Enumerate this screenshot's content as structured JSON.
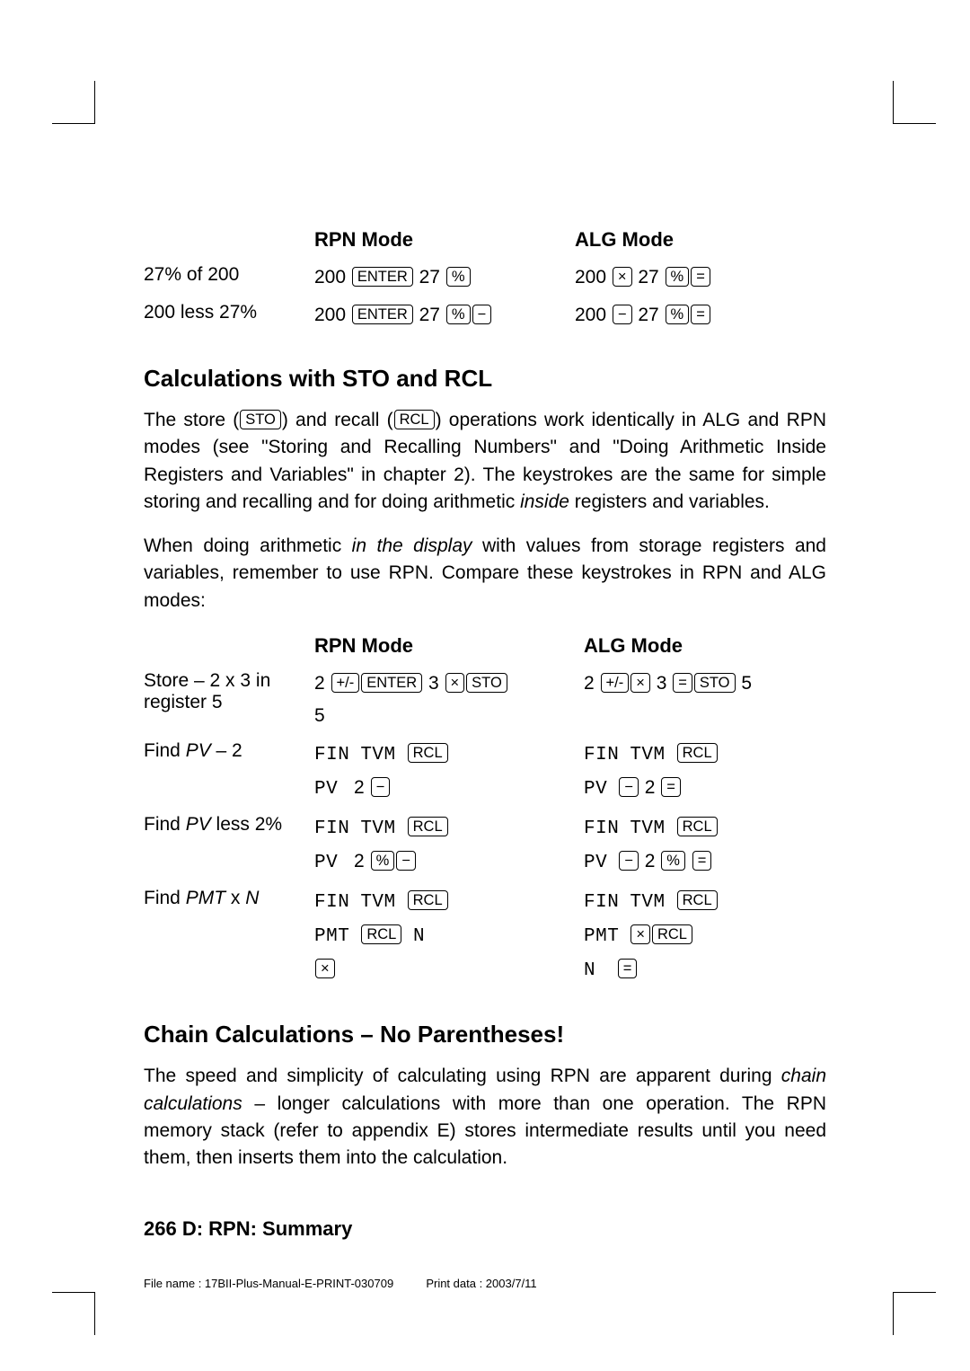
{
  "table1": {
    "head_rpn": "RPN Mode",
    "head_alg": "ALG Mode",
    "rows": [
      {
        "label": "27% of 200",
        "rpn": [
          "200 ",
          "ENTER",
          " 27 ",
          "%"
        ],
        "alg": [
          "200 ",
          "×",
          " 27 ",
          "%",
          "="
        ]
      },
      {
        "label": "200 less 27%",
        "rpn": [
          "200 ",
          "ENTER",
          " 27 ",
          "%",
          "−"
        ],
        "alg": [
          "200 ",
          "−",
          " 27 ",
          "%",
          "="
        ]
      }
    ]
  },
  "h_sto": "Calculations with STO and RCL",
  "p1a": "The store (",
  "p1b": ") and recall (",
  "p1c": ") operations work identically in ALG and RPN modes (see \"Storing and Recalling Numbers\" and \"Doing Arithmetic Inside Registers and Variables\" in chapter 2). The keystrokes are the same for simple storing and recalling and for doing arithmetic ",
  "p1d": " registers and variables.",
  "p1_inside": "inside",
  "p2a": "When doing arithmetic ",
  "p2b": " with values from storage registers and variables, remember to use RPN. Compare these keystrokes in RPN and ALG modes:",
  "p2_disp": "in the display",
  "table2": {
    "head_rpn": "RPN Mode",
    "head_alg": "ALG Mode",
    "rows": [
      {
        "label_a": "Store – 2 x 3 in",
        "label_b": "register 5",
        "rpn_l1": [
          "2 ",
          "+/-",
          "ENTER",
          " 3 ",
          "×",
          "STO"
        ],
        "rpn_l2": [
          "5"
        ],
        "alg_l1": [
          "2 ",
          "+/-",
          "×",
          " 3 ",
          "=",
          "STO",
          " 5"
        ]
      },
      {
        "label_a": "Find ",
        "label_i": "PV",
        "label_c": " – 2",
        "rpn_l1_disp": [
          "FIN",
          "TVM"
        ],
        "rpn_l1_keys": [
          "RCL"
        ],
        "rpn_l2_disp": [
          "PV"
        ],
        "rpn_l2_txt": " 2 ",
        "rpn_l2_keys": [
          "−"
        ],
        "alg_l1_disp": [
          "FIN",
          "TVM"
        ],
        "alg_l1_keys": [
          "RCL"
        ],
        "alg_l2_disp": [
          "PV"
        ],
        "alg_l2_keys": [
          "−",
          " 2 ",
          "="
        ]
      },
      {
        "label_a": "Find ",
        "label_i": "PV",
        "label_c": " less 2%",
        "rpn_l1_disp": [
          "FIN",
          "TVM"
        ],
        "rpn_l1_keys": [
          "RCL"
        ],
        "rpn_l2_disp": [
          "PV"
        ],
        "rpn_l2_txt": " 2 ",
        "rpn_l2_keys": [
          "%",
          "−"
        ],
        "alg_l1_disp": [
          "FIN",
          "TVM"
        ],
        "alg_l1_keys": [
          "RCL"
        ],
        "alg_l2_disp": [
          "PV"
        ],
        "alg_l2_keys": [
          "−",
          " 2 ",
          "%",
          " ",
          "="
        ]
      },
      {
        "label_a": "Find ",
        "label_i": "PMT",
        "label_c": " x ",
        "label_i2": "N",
        "rpn_l1_disp": [
          "FIN",
          "TVM"
        ],
        "rpn_l1_keys": [
          "RCL"
        ],
        "rpn_l2_disp": [
          "PMT"
        ],
        "rpn_l2_keys": [
          "RCL"
        ],
        "rpn_l2_disp2": [
          "N"
        ],
        "rpn_l3_keys": [
          "×"
        ],
        "alg_l1_disp": [
          "FIN",
          "TVM"
        ],
        "alg_l1_keys": [
          "RCL"
        ],
        "alg_l2_disp": [
          "PMT"
        ],
        "alg_l2_keys": [
          "×",
          "RCL"
        ],
        "alg_l3_disp": [
          "N"
        ],
        "alg_l3_keys": [
          "="
        ]
      }
    ]
  },
  "h_chain": "Chain Calculations – No Parentheses!",
  "p3a": "The speed and simplicity of calculating using RPN are apparent during ",
  "p3b": " – longer calculations with more than one operation. The RPN memory stack (refer to appendix E) stores intermediate results until you need them, then inserts them into the calculation.",
  "p3_i": "chain calculations",
  "footer_page": "266  D: RPN: Summary",
  "footer_file_a": "File name : 17BII-Plus-Manual-E-PRINT-030709",
  "footer_file_b": "Print data : 2003/7/11"
}
